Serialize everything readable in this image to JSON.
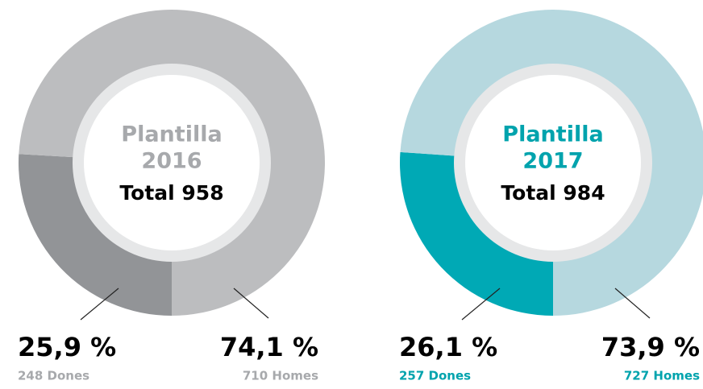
{
  "chart_data": [
    {
      "type": "donut",
      "title": "Plantilla",
      "subtitle": "2016",
      "total_label": "Total 958",
      "categories": [
        "Dones",
        "Homes"
      ],
      "values": [
        25.9,
        74.1
      ],
      "value_labels": [
        "25,9 %",
        "74,1 %"
      ],
      "count_labels": [
        "248 Dones",
        "710 Homes"
      ],
      "colors": [
        "#929497",
        "#bcbdbf"
      ],
      "accent": "#a7a9ac"
    },
    {
      "type": "donut",
      "title": "Plantilla",
      "subtitle": "2017",
      "total_label": "Total 984",
      "categories": [
        "Dones",
        "Homes"
      ],
      "values": [
        26.1,
        73.9
      ],
      "value_labels": [
        "26,1 %",
        "73,9 %"
      ],
      "count_labels": [
        "257 Dones",
        "727 Homes"
      ],
      "colors": [
        "#00a9b5",
        "#b6d8df"
      ],
      "accent": "#00a3ad"
    }
  ]
}
